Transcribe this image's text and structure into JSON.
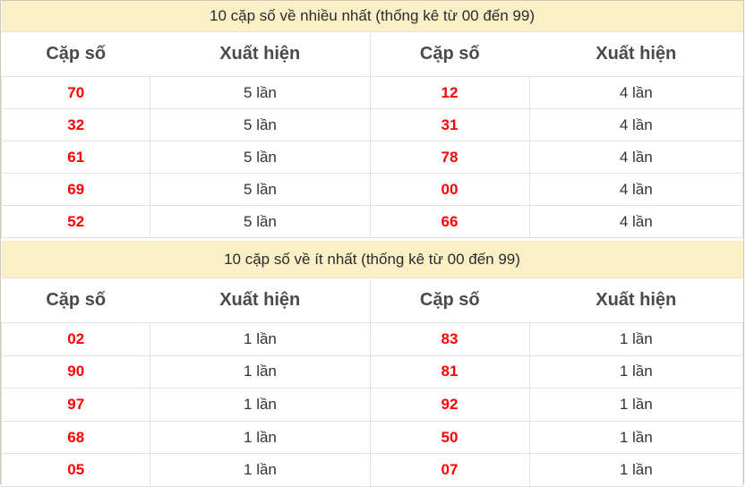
{
  "tables": [
    {
      "title": "10 cặp số về nhiều nhất (thống kê từ 00 đến 99)",
      "columns": [
        "Cặp số",
        "Xuất hiện",
        "Cặp số",
        "Xuất hiện"
      ],
      "rows": [
        [
          "70",
          "5 lần",
          "12",
          "4 lần"
        ],
        [
          "32",
          "5 lần",
          "31",
          "4 lần"
        ],
        [
          "61",
          "5 lần",
          "78",
          "4 lần"
        ],
        [
          "69",
          "5 lần",
          "00",
          "4 lần"
        ],
        [
          "52",
          "5 lần",
          "66",
          "4 lần"
        ]
      ]
    },
    {
      "title": "10 cặp số về ít nhất (thống kê từ 00 đến 99)",
      "columns": [
        "Cặp số",
        "Xuất hiện",
        "Cặp số",
        "Xuất hiện"
      ],
      "rows": [
        [
          "02",
          "1 lần",
          "83",
          "1 lần"
        ],
        [
          "90",
          "1 lần",
          "81",
          "1 lần"
        ],
        [
          "97",
          "1 lần",
          "92",
          "1 lần"
        ],
        [
          "68",
          "1 lần",
          "50",
          "1 lần"
        ],
        [
          "05",
          "1 lần",
          "07",
          "1 lần"
        ]
      ]
    }
  ],
  "colors": {
    "title_band_bg": "#FBEFC7",
    "pair_number_text": "#FF0000",
    "header_text": "#4A4A4A",
    "body_text": "#333333",
    "outer_border": "#CDC7B7",
    "inner_border": "#E3E3E3"
  }
}
